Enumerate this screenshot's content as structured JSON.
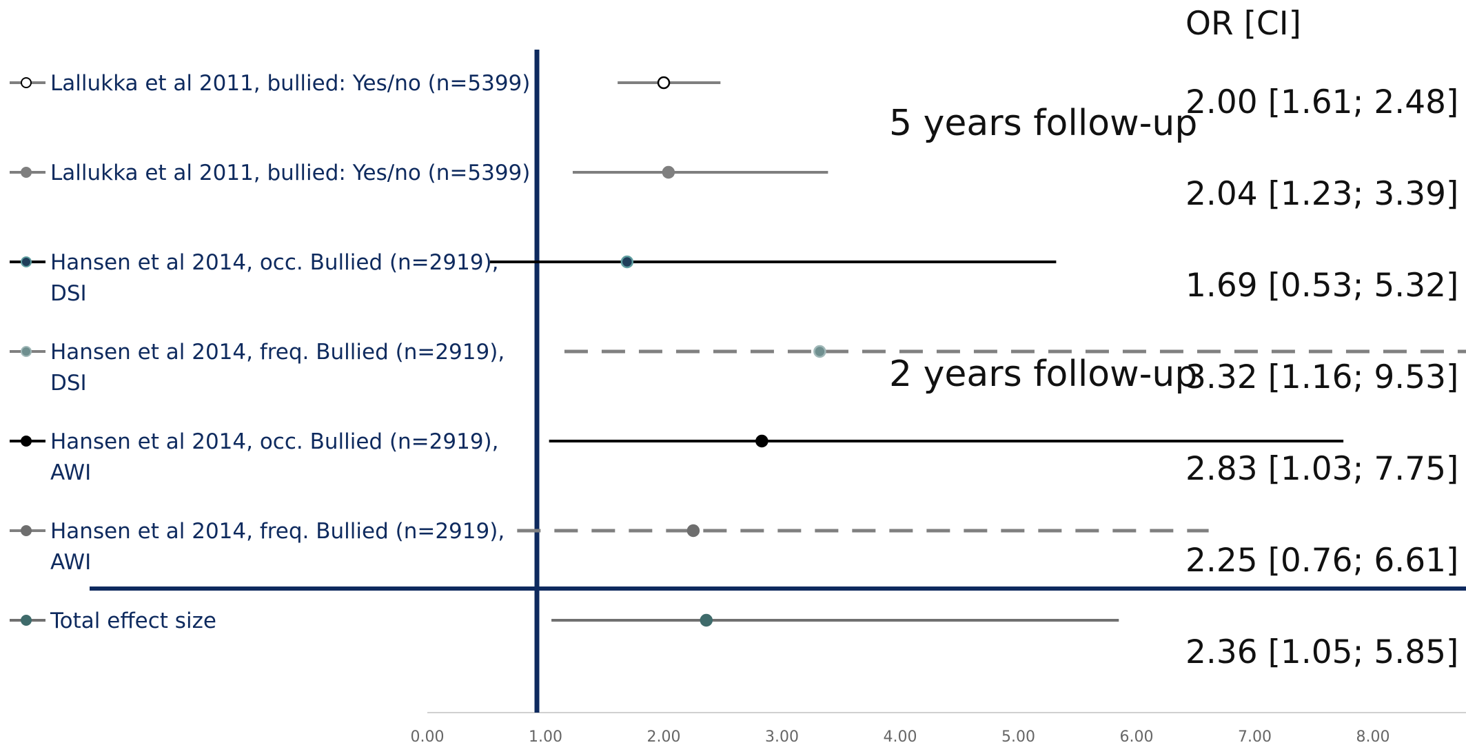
{
  "chart_data": {
    "type": "forest",
    "xlim": [
      0,
      9
    ],
    "x_ticks": [
      "0.00",
      "1.00",
      "2.00",
      "3.00",
      "4.00",
      "5.00",
      "6.00",
      "7.00",
      "8.00"
    ],
    "reference_line": 1,
    "ci_header": "OR [CI]",
    "annotations": [
      "5 years follow-up",
      "2 years follow-up"
    ],
    "studies": [
      {
        "label": [
          "Lallukka et al 2011, bullied: Yes/no (n=5399)"
        ],
        "or": 2.0,
        "lo": 1.61,
        "hi": 2.48,
        "ci_text": "2.00 [1.61; 2.48]",
        "line_color": "#7f7f7f",
        "marker_fill": "#ffffff",
        "marker_stroke": "#000000",
        "dash": false
      },
      {
        "label": [
          "Lallukka et al 2011, bullied: Yes/no (n=5399)"
        ],
        "or": 2.04,
        "lo": 1.23,
        "hi": 3.39,
        "ci_text": "2.04 [1.23; 3.39]",
        "line_color": "#7f7f7f",
        "marker_fill": "#7f7f7f",
        "marker_stroke": "#7f7f7f",
        "dash": false
      },
      {
        "label": [
          "Hansen et al 2014, occ. Bullied (n=2919),",
          "DSI"
        ],
        "or": 1.69,
        "lo": 0.53,
        "hi": 5.32,
        "ci_text": "1.69 [0.53; 5.32]",
        "line_color": "#000000",
        "marker_fill": "#1f3e5a",
        "marker_stroke": "#5f9ea0",
        "dash": false
      },
      {
        "label": [
          "Hansen et al 2014, freq. Bullied (n=2919),",
          "DSI"
        ],
        "or": 3.32,
        "lo": 1.16,
        "hi": 9.53,
        "ci_text": "3.32 [1.16; 9.53]",
        "line_color": "#808080",
        "marker_fill": "#6f8f8f",
        "marker_stroke": "#a0b8b8",
        "dash": true
      },
      {
        "label": [
          "Hansen et al 2014, occ. Bullied (n=2919),",
          "AWI"
        ],
        "or": 2.83,
        "lo": 1.03,
        "hi": 7.75,
        "ci_text": "2.83 [1.03; 7.75]",
        "line_color": "#000000",
        "marker_fill": "#000000",
        "marker_stroke": "#000000",
        "dash": false
      },
      {
        "label": [
          "Hansen et al 2014, freq. Bullied (n=2919),",
          "AWI"
        ],
        "or": 2.25,
        "lo": 0.76,
        "hi": 6.61,
        "ci_text": "2.25 [0.76; 6.61]",
        "line_color": "#808080",
        "marker_fill": "#6e6e6e",
        "marker_stroke": "#6e6e6e",
        "dash": true
      },
      {
        "label": [
          "Total effect size"
        ],
        "or": 2.36,
        "lo": 1.05,
        "hi": 5.85,
        "ci_text": "2.36 [1.05; 5.85]",
        "line_color": "#707070",
        "marker_fill": "#3f6b6b",
        "marker_stroke": "#3f6b6b",
        "dash": false
      }
    ]
  },
  "colors": {
    "axis_navy": "#0e2a5e",
    "tick_gray": "#666666"
  }
}
